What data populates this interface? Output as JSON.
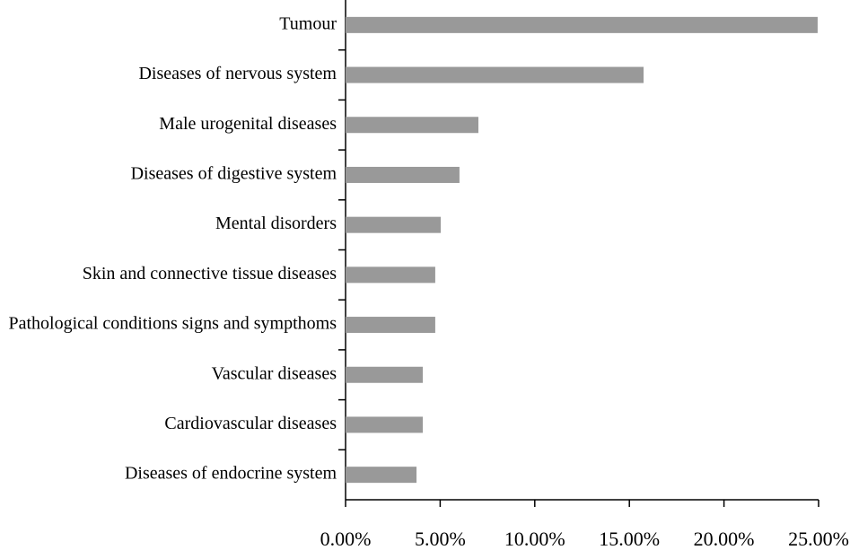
{
  "chart_data": {
    "type": "bar",
    "orientation": "horizontal",
    "categories": [
      "Tumour",
      "Diseases of nervous system",
      "Male urogenital diseases",
      "Diseases of digestive system",
      "Mental disorders",
      "Skin and connective tissue diseases",
      "Pathological conditions signs and sympthoms",
      "Vascular diseases",
      "Cardiovascular diseases",
      "Diseases of endocrine system"
    ],
    "values": [
      24.95,
      15.75,
      7.02,
      6.02,
      5.03,
      4.74,
      4.74,
      4.08,
      4.08,
      3.75
    ],
    "color": "#999999",
    "xlim": [
      0,
      25
    ],
    "xticks": [
      {
        "value": 0,
        "label": "0.00%"
      },
      {
        "value": 5,
        "label": "5.00%"
      },
      {
        "value": 10,
        "label": "10.00%"
      },
      {
        "value": 15,
        "label": "15.00%"
      },
      {
        "value": 20,
        "label": "20.00%"
      },
      {
        "value": 25,
        "label": "25.00%"
      }
    ],
    "grid": false
  }
}
